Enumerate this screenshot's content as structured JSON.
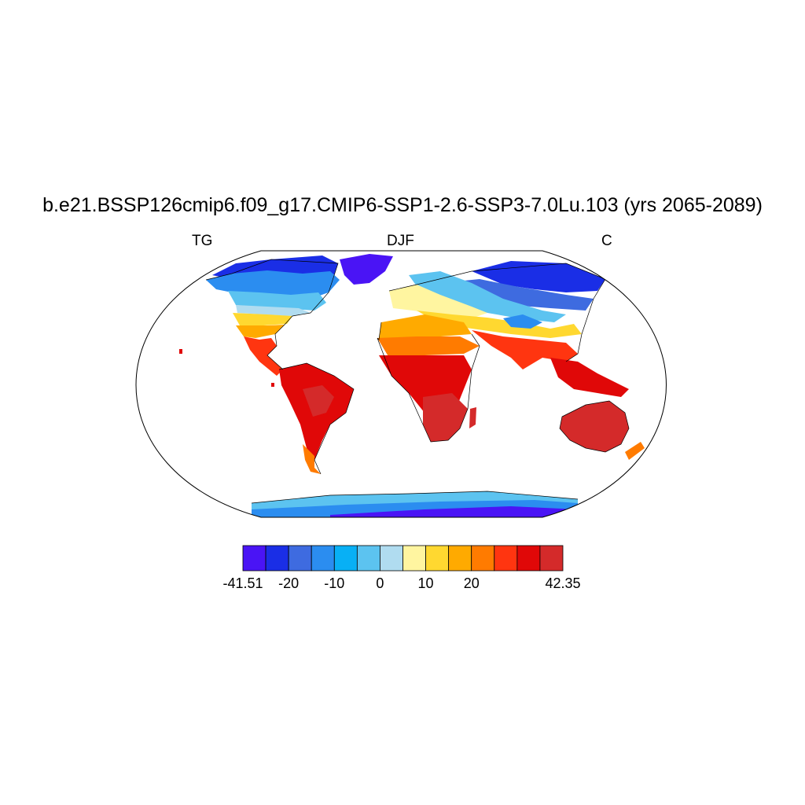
{
  "title": "b.e21.BSSP126cmip6.f09_g17.CMIP6-SSP1-2.6-SSP3-7.0Lu.103 (yrs 2065-2089)",
  "subtitle_left": "TG",
  "subtitle_center": "DJF",
  "subtitle_right": "C",
  "colorbar": {
    "colors": [
      "#4a14f5",
      "#1a2ee6",
      "#3e6be0",
      "#2b8df0",
      "#08b0f5",
      "#5cc3f0",
      "#b0dcf0",
      "#fff5a0",
      "#ffd830",
      "#ffaa00",
      "#ff7b00",
      "#ff3510",
      "#e00808",
      "#d42a2a"
    ],
    "labels": [
      "-41.51",
      "-20",
      "-10",
      "0",
      "10",
      "20",
      "42.35"
    ],
    "label_boundaries": [
      0,
      2,
      4,
      6,
      8,
      10,
      14
    ]
  },
  "map_data": {
    "variable": "TG",
    "season": "DJF",
    "units": "C",
    "min": -41.51,
    "max": 42.35
  }
}
